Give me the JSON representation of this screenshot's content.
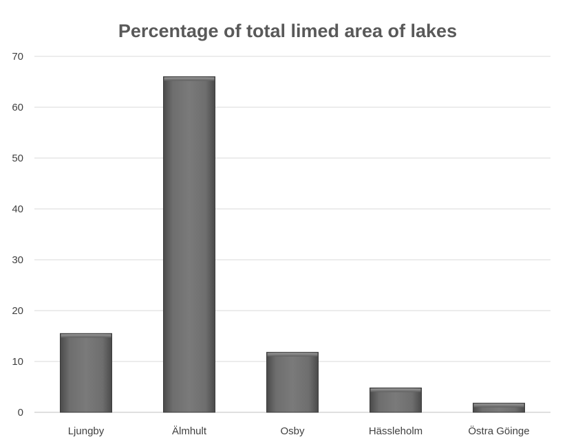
{
  "chart_data": {
    "type": "bar",
    "title": "Percentage of total limed area of lakes",
    "categories": [
      "Ljungby",
      "Älmhult",
      "Osby",
      "Hässleholm",
      "Östra Göinge"
    ],
    "values": [
      15.5,
      66,
      11.8,
      4.8,
      1.8
    ],
    "ylim": [
      0,
      70
    ],
    "yticks": [
      0,
      10,
      20,
      30,
      40,
      50,
      60,
      70
    ],
    "grid": true,
    "legend": "none",
    "bar_color": "#6b6b6b",
    "bar_edge_color": "#3a3a3a"
  }
}
